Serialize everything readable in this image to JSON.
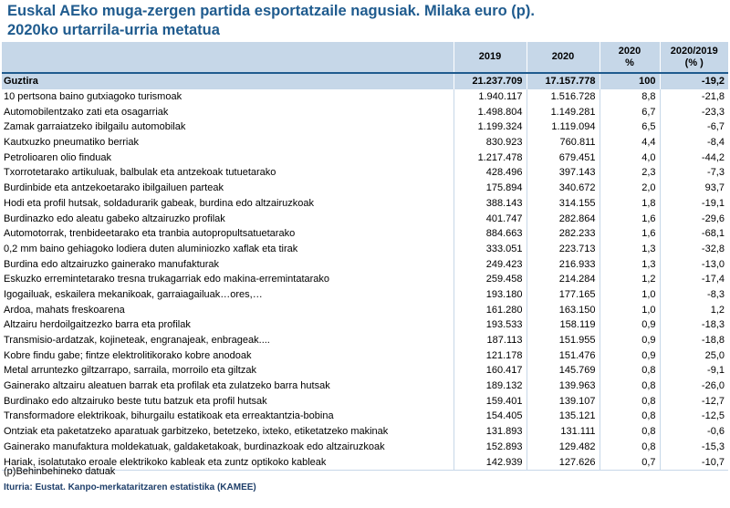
{
  "title": {
    "line1": "Euskal AEko muga-zergen partida esportatzaile nagusiak. Milaka euro (p).",
    "line2": "2020ko urtarrila-urria metatua"
  },
  "table": {
    "headers": {
      "name": "",
      "y2019": "2019",
      "y2020": "2020",
      "pct_line1": "2020",
      "pct_line2": "%",
      "chg_line1": "2020/2019",
      "chg_line2": "(% )"
    },
    "rows": [
      {
        "name": "Guztira",
        "y2019": "21.237.709",
        "y2020": "17.157.778",
        "pct": "100",
        "chg": "-19,2"
      },
      {
        "name": "10 pertsona baino gutxiagoko turismoak",
        "y2019": "1.940.117",
        "y2020": "1.516.728",
        "pct": "8,8",
        "chg": "-21,8"
      },
      {
        "name": "Automobilentzako zati eta osagarriak",
        "y2019": "1.498.804",
        "y2020": "1.149.281",
        "pct": "6,7",
        "chg": "-23,3"
      },
      {
        "name": "Zamak garraiatzeko ibilgailu automobilak",
        "y2019": "1.199.324",
        "y2020": "1.119.094",
        "pct": "6,5",
        "chg": "-6,7"
      },
      {
        "name": "Kautxuzko pneumatiko berriak",
        "y2019": "830.923",
        "y2020": "760.811",
        "pct": "4,4",
        "chg": "-8,4"
      },
      {
        "name": "Petrolioaren olio finduak",
        "y2019": "1.217.478",
        "y2020": "679.451",
        "pct": "4,0",
        "chg": "-44,2"
      },
      {
        "name": "Txorrotetarako artikuluak, balbulak eta antzekoak tutuetarako",
        "y2019": "428.496",
        "y2020": "397.143",
        "pct": "2,3",
        "chg": "-7,3"
      },
      {
        "name": "Burdinbide eta antzekoetarako ibilgailuen parteak",
        "y2019": "175.894",
        "y2020": "340.672",
        "pct": "2,0",
        "chg": "93,7"
      },
      {
        "name": "Hodi eta profil hutsak, soldadurarik gabeak, burdina edo altzairuzkoak",
        "y2019": "388.143",
        "y2020": "314.155",
        "pct": "1,8",
        "chg": "-19,1"
      },
      {
        "name": "Burdinazko edo aleatu gabeko altzairuzko profilak",
        "y2019": "401.747",
        "y2020": "282.864",
        "pct": "1,6",
        "chg": "-29,6"
      },
      {
        "name": "Automotorrak, trenbideetarako eta tranbia autopropultsatuetarako",
        "y2019": "884.663",
        "y2020": "282.233",
        "pct": "1,6",
        "chg": "-68,1"
      },
      {
        "name": "0,2 mm baino gehiagoko lodiera duten aluminiozko xaflak eta tirak",
        "y2019": "333.051",
        "y2020": "223.713",
        "pct": "1,3",
        "chg": "-32,8"
      },
      {
        "name": "Burdina edo altzairuzko gainerako manufakturak",
        "y2019": "249.423",
        "y2020": "216.933",
        "pct": "1,3",
        "chg": "-13,0"
      },
      {
        "name": "Eskuzko erremintetarako tresna trukagarriak edo  makina-erremintatarako",
        "y2019": "259.458",
        "y2020": "214.284",
        "pct": "1,2",
        "chg": "-17,4"
      },
      {
        "name": "Igogailuak, eskailera mekanikoak, garraiagailuak…ores,…",
        "y2019": "193.180",
        "y2020": "177.165",
        "pct": "1,0",
        "chg": "-8,3"
      },
      {
        "name": "Ardoa, mahats freskoarena",
        "y2019": "161.280",
        "y2020": "163.150",
        "pct": "1,0",
        "chg": "1,2"
      },
      {
        "name": "Altzairu herdoilgaitzezko barra eta profilak",
        "y2019": "193.533",
        "y2020": "158.119",
        "pct": "0,9",
        "chg": "-18,3"
      },
      {
        "name": "Transmisio-ardatzak, kojineteak, engranajeak, enbrageak....",
        "y2019": "187.113",
        "y2020": "151.955",
        "pct": "0,9",
        "chg": "-18,8"
      },
      {
        "name": "Kobre findu gabe; fintze elektrolitikorako kobre anodoak",
        "y2019": "121.178",
        "y2020": "151.476",
        "pct": "0,9",
        "chg": "25,0"
      },
      {
        "name": "Metal arruntezko giltzarrapo, sarraila, morroilo eta giltzak",
        "y2019": "160.417",
        "y2020": "145.769",
        "pct": "0,8",
        "chg": "-9,1"
      },
      {
        "name": "Gainerako altzairu aleatuen barrak eta profilak eta zulatzeko barra hutsak",
        "y2019": "189.132",
        "y2020": "139.963",
        "pct": "0,8",
        "chg": "-26,0"
      },
      {
        "name": "Burdinako edo altzairuko beste tutu batzuk eta profil hutsak",
        "y2019": "159.401",
        "y2020": "139.107",
        "pct": "0,8",
        "chg": "-12,7"
      },
      {
        "name": "Transformadore elektrikoak, bihurgailu estatikoak eta erreaktantzia-bobina",
        "y2019": "154.405",
        "y2020": "135.121",
        "pct": "0,8",
        "chg": "-12,5"
      },
      {
        "name": "Ontziak eta paketatzeko aparatuak garbitzeko, betetzeko, ixteko, etiketatzeko makinak",
        "y2019": "131.893",
        "y2020": "131.111",
        "pct": "0,8",
        "chg": "-0,6"
      },
      {
        "name": "Gainerako manufaktura moldekatuak, galdaketakoak, burdinazkoak edo altzairuzkoak",
        "y2019": "152.893",
        "y2020": "129.482",
        "pct": "0,8",
        "chg": "-15,3"
      },
      {
        "name": "Hariak, isolatutako eroale elektrikoko kableak eta zuntz optikoko kableak",
        "y2019": "142.939",
        "y2020": "127.626",
        "pct": "0,7",
        "chg": "-10,7"
      }
    ]
  },
  "footer": {
    "note": "(p)Behinbehineko datuak",
    "source": "Iturria: Eustat. Kanpo-merkataritzaren estatistika (KAMEE)"
  },
  "colors": {
    "title": "#1f5b8e",
    "header_bg": "#c6d7e8",
    "source": "#1f3f6a"
  }
}
